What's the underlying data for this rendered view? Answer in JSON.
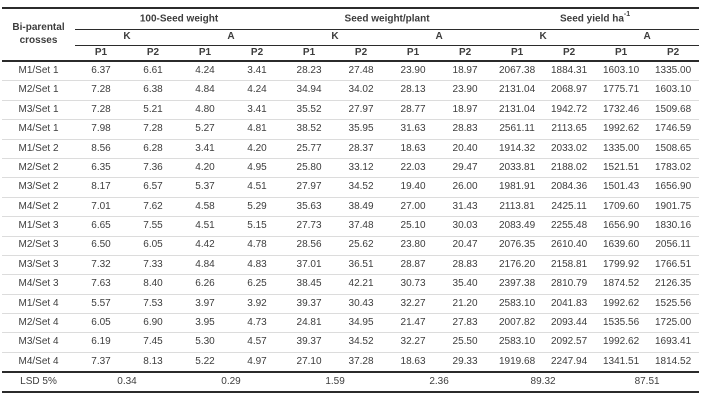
{
  "table": {
    "corner_header": "Bi-parental crosses",
    "groups": [
      {
        "label": "100-Seed weight",
        "sup": ""
      },
      {
        "label": "Seed weight/plant",
        "sup": ""
      },
      {
        "label": "Seed yield ha",
        "sup": "-1"
      }
    ],
    "sub_headers": [
      "K",
      "A",
      "K",
      "A",
      "K",
      "A"
    ],
    "col_headers": [
      "P1",
      "P2",
      "P1",
      "P2",
      "P1",
      "P2",
      "P1",
      "P2",
      "P1",
      "P2",
      "P1",
      "P2"
    ],
    "rows": [
      {
        "label": "M1/Set 1",
        "values": [
          "6.37",
          "6.61",
          "4.24",
          "3.41",
          "28.23",
          "27.48",
          "23.90",
          "18.97",
          "2067.38",
          "1884.31",
          "1603.10",
          "1335.00"
        ]
      },
      {
        "label": "M2/Set 1",
        "values": [
          "7.28",
          "6.38",
          "4.84",
          "4.24",
          "34.94",
          "34.02",
          "28.13",
          "23.90",
          "2131.04",
          "2068.97",
          "1775.71",
          "1603.10"
        ]
      },
      {
        "label": "M3/Set 1",
        "values": [
          "7.28",
          "5.21",
          "4.80",
          "3.41",
          "35.52",
          "27.97",
          "28.77",
          "18.97",
          "2131.04",
          "1942.72",
          "1732.46",
          "1509.68"
        ]
      },
      {
        "label": "M4/Set 1",
        "values": [
          "7.98",
          "7.28",
          "5.27",
          "4.81",
          "38.52",
          "35.95",
          "31.63",
          "28.83",
          "2561.11",
          "2113.65",
          "1992.62",
          "1746.59"
        ]
      },
      {
        "label": "M1/Set 2",
        "values": [
          "8.56",
          "6.28",
          "3.41",
          "4.20",
          "25.77",
          "28.37",
          "18.63",
          "20.40",
          "1914.32",
          "2033.02",
          "1335.00",
          "1508.65"
        ]
      },
      {
        "label": "M2/Set 2",
        "values": [
          "6.35",
          "7.36",
          "4.20",
          "4.95",
          "25.80",
          "33.12",
          "22.03",
          "29.47",
          "2033.81",
          "2188.02",
          "1521.51",
          "1783.02"
        ]
      },
      {
        "label": "M3/Set 2",
        "values": [
          "8.17",
          "6.57",
          "5.37",
          "4.51",
          "27.97",
          "34.52",
          "19.40",
          "26.00",
          "1981.91",
          "2084.36",
          "1501.43",
          "1656.90"
        ]
      },
      {
        "label": "M4/Set 2",
        "values": [
          "7.01",
          "7.62",
          "4.58",
          "5.29",
          "35.63",
          "38.49",
          "27.00",
          "31.43",
          "2113.81",
          "2425.11",
          "1709.60",
          "1901.75"
        ]
      },
      {
        "label": "M1/Set 3",
        "values": [
          "6.65",
          "7.55",
          "4.51",
          "5.15",
          "27.73",
          "37.48",
          "25.10",
          "30.03",
          "2083.49",
          "2255.48",
          "1656.90",
          "1830.16"
        ]
      },
      {
        "label": "M2/Set 3",
        "values": [
          "6.50",
          "6.05",
          "4.42",
          "4.78",
          "28.56",
          "25.62",
          "23.80",
          "20.47",
          "2076.35",
          "2610.40",
          "1639.60",
          "2056.11"
        ]
      },
      {
        "label": "M3/Set 3",
        "values": [
          "7.32",
          "7.33",
          "4.84",
          "4.83",
          "37.01",
          "36.51",
          "28.87",
          "28.83",
          "2176.20",
          "2158.81",
          "1799.92",
          "1766.51"
        ]
      },
      {
        "label": "M4/Set 3",
        "values": [
          "7.63",
          "8.40",
          "6.26",
          "6.25",
          "38.45",
          "42.21",
          "30.73",
          "35.40",
          "2397.38",
          "2810.79",
          "1874.52",
          "2126.35"
        ]
      },
      {
        "label": "M1/Set 4",
        "values": [
          "5.57",
          "7.53",
          "3.97",
          "3.92",
          "39.37",
          "30.43",
          "32.27",
          "21.20",
          "2583.10",
          "2041.83",
          "1992.62",
          "1525.56"
        ]
      },
      {
        "label": "M2/Set 4",
        "values": [
          "6.05",
          "6.90",
          "3.95",
          "4.73",
          "24.81",
          "34.95",
          "21.47",
          "27.83",
          "2007.82",
          "2093.44",
          "1535.56",
          "1725.00"
        ]
      },
      {
        "label": "M3/Set 4",
        "values": [
          "6.19",
          "7.45",
          "5.30",
          "4.57",
          "39.37",
          "34.52",
          "32.27",
          "25.50",
          "2583.10",
          "2092.57",
          "1992.62",
          "1693.41"
        ]
      },
      {
        "label": "M4/Set 4",
        "values": [
          "7.37",
          "8.13",
          "5.22",
          "4.97",
          "27.10",
          "37.28",
          "18.63",
          "29.33",
          "1919.68",
          "2247.94",
          "1341.51",
          "1814.52"
        ]
      }
    ],
    "lsd": {
      "label": "LSD 5%",
      "values": [
        "0.34",
        "0.29",
        "1.59",
        "2.36",
        "89.32",
        "87.51"
      ]
    }
  }
}
